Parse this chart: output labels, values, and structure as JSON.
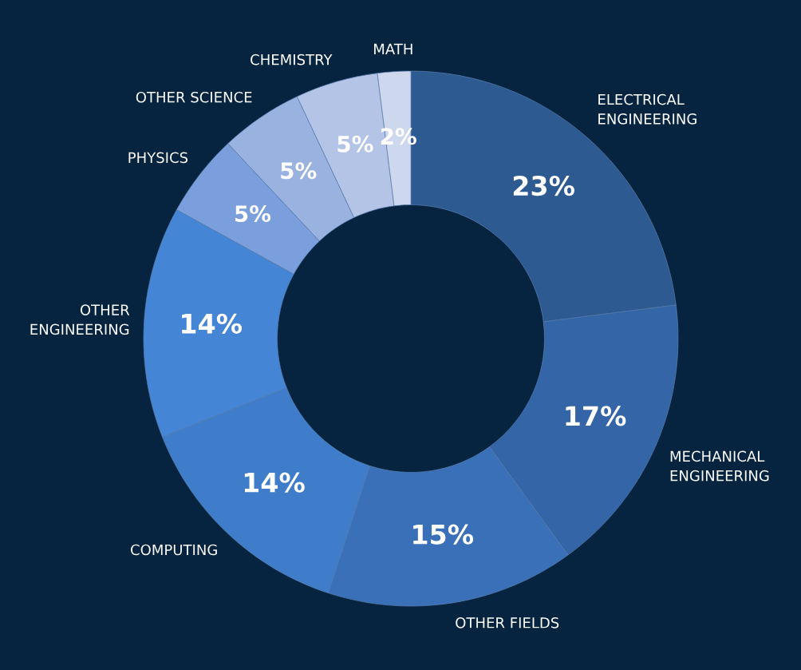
{
  "chart_data": {
    "type": "donut",
    "categories": [
      "ELECTRICAL\nENGINEERING",
      "MECHANICAL\nENGINEERING",
      "OTHER FIELDS",
      "COMPUTING",
      "OTHER\nENGINEERING",
      "PHYSICS",
      "OTHER SCIENCE",
      "CHEMISTRY",
      "MATH"
    ],
    "values": [
      23,
      17,
      15,
      14,
      14,
      5,
      5,
      5,
      2
    ],
    "colors": [
      "#2e5a92",
      "#3465a6",
      "#3a70b8",
      "#3f7dcb",
      "#4585d6",
      "#7a9fdc",
      "#9ab2e0",
      "#b3c4e6",
      "#cdd8ee"
    ],
    "value_labels": [
      "23%",
      "17%",
      "15%",
      "14%",
      "14%",
      "5%",
      "5%",
      "5%",
      "2%"
    ],
    "legend": false
  }
}
